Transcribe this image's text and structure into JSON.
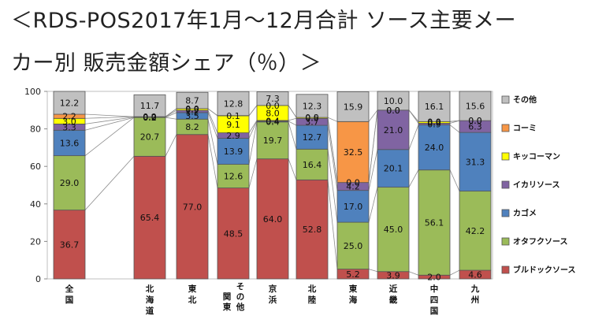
{
  "title": {
    "line1": "＜RDS-POS2017年1月〜12月合計 ソース主要メー",
    "line2": "カー別 販売金額シェア（％）＞"
  },
  "chart_data": {
    "type": "bar",
    "stacked": true,
    "percent": true,
    "categories": [
      {
        "name": "全国",
        "label": [
          "全",
          "国"
        ]
      },
      {
        "name": "北海道",
        "label": [
          "北",
          "海",
          "道"
        ]
      },
      {
        "name": "東北",
        "label": [
          "東",
          "北"
        ]
      },
      {
        "name": "関東その他",
        "label": [
          "関",
          "東"
        ],
        "label2": [
          "そ",
          "の",
          "他"
        ]
      },
      {
        "name": "京浜",
        "label": [
          "京",
          "浜"
        ]
      },
      {
        "name": "北陸",
        "label": [
          "北",
          "陸"
        ]
      },
      {
        "name": "東海",
        "label": [
          "東",
          "海"
        ]
      },
      {
        "name": "近畿",
        "label": [
          "近",
          "畿"
        ]
      },
      {
        "name": "中四国",
        "label": [
          "中",
          "四",
          "国"
        ]
      },
      {
        "name": "九州",
        "label": [
          "九",
          "州"
        ]
      }
    ],
    "series": [
      {
        "name": "ブルドックソース",
        "color": "#c0504d",
        "values": [
          36.7,
          65.4,
          77.0,
          48.5,
          64.0,
          52.8,
          5.2,
          3.9,
          2.0,
          4.6
        ]
      },
      {
        "name": "オタフクソース",
        "color": "#9bbb59",
        "values": [
          29.0,
          20.7,
          8.2,
          12.6,
          19.7,
          16.4,
          25.0,
          45.0,
          56.1,
          42.2
        ]
      },
      {
        "name": "カゴメ",
        "color": "#4f81bd",
        "values": [
          13.6,
          0.0,
          3.5,
          13.9,
          0.4,
          12.7,
          17.0,
          20.1,
          24.0,
          31.3
        ]
      },
      {
        "name": "イカリソース",
        "color": "#8064a2",
        "values": [
          3.3,
          0.2,
          1.2,
          2.9,
          0.4,
          3.7,
          4.2,
          21.0,
          0.9,
          6.3
        ]
      },
      {
        "name": "キッコーマン",
        "color": "#ffff00",
        "values": [
          3.0,
          0.2,
          0.9,
          9.1,
          8.0,
          0.5,
          0.0,
          0.0,
          0.9,
          0.0
        ]
      },
      {
        "name": "コーミ",
        "color": "#f79646",
        "values": [
          2.2,
          0.0,
          0.0,
          0.1,
          0.0,
          0.0,
          32.5,
          0.0,
          0.0,
          0.0
        ]
      },
      {
        "name": "その他",
        "color": "#c0c0c0",
        "values": [
          12.2,
          11.7,
          8.7,
          12.8,
          7.3,
          12.3,
          15.9,
          10.0,
          16.1,
          15.6
        ]
      }
    ],
    "segment_labels": [
      [
        "36.7",
        "29.0",
        "13.6",
        "3.3",
        "3.0",
        "2.2",
        "12.2"
      ],
      [
        "65.4",
        "20.7",
        "0.0",
        "0.2",
        "0.2",
        "0.0",
        "11.7"
      ],
      [
        "77.0",
        "8.2",
        "3.5",
        "1.2",
        "0.9",
        "0.0",
        "8.7"
      ],
      [
        "48.5",
        "12.6",
        "13.9",
        "2.9",
        "9.1",
        "0.1",
        "12.8"
      ],
      [
        "64.0",
        "19.7",
        "0.4",
        "0.4",
        "8.0",
        "0.0",
        "7.3"
      ],
      [
        "52.8",
        "16.4",
        "12.7",
        "3.7",
        "0.5",
        "0.0",
        "12.3"
      ],
      [
        "5.2",
        "25.0",
        "17.0",
        "4.2",
        "0.0",
        "32.5",
        "15.9"
      ],
      [
        "3.9",
        "45.0",
        "20.1",
        "21.0",
        "0.0",
        "0.0",
        "10.0"
      ],
      [
        "2.0",
        "56.1",
        "24.0",
        "0.9",
        "0.9",
        "0.0",
        "16.1"
      ],
      [
        "4.6",
        "42.2",
        "31.3",
        "6.3",
        "0.0",
        "0.0",
        "15.6"
      ]
    ],
    "legend": [
      "その他",
      "コーミ",
      "キッコーマン",
      "イカリソース",
      "カゴメ",
      "オタフクソース",
      "ブルドックソース"
    ],
    "y_ticks": [
      0,
      20,
      40,
      60,
      80,
      100
    ],
    "ylim": [
      0,
      100
    ],
    "connector_lines": true,
    "legend_position": "right"
  }
}
